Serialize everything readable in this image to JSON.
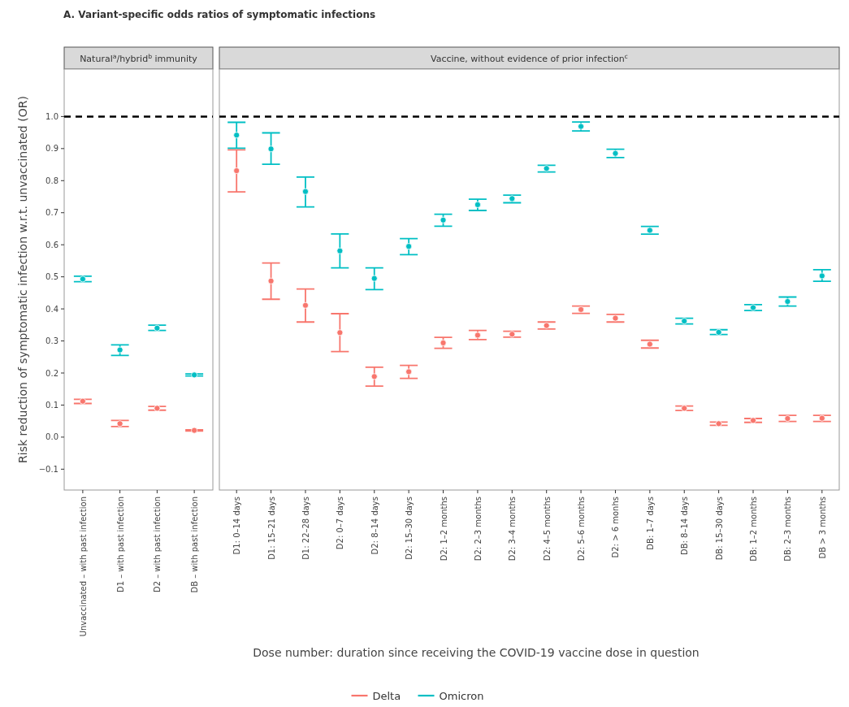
{
  "chart_data": [
    {
      "type": "scatter",
      "title": "Natural$^{a}$/hybrid$^{b}$ immunity",
      "ylabel": "Risk reduction of symptomatic infection w.r.t. unvaccinated (OR)",
      "annotations": [
        "A. Variant-specific odds ratios of symptomatic infections"
      ],
      "categories": [
        "Unvaccinated – with past infection",
        "D1 – with past infection",
        "D2 – with past infection",
        "DB – with past infection"
      ],
      "ylim": [
        -0.165,
        1.148
      ],
      "yticks": [
        {
          "value": -0.1,
          "label": "−0.1"
        },
        {
          "value": 0,
          "label": "0.0"
        },
        0.1,
        0.2,
        0.3,
        0.4,
        0.5,
        0.6,
        0.7,
        0.8,
        0.9,
        {
          "value": 1,
          "label": "1.0"
        }
      ],
      "grid": false,
      "marker": "circle",
      "ref_lines": [
        {
          "axis": "y",
          "value": 1,
          "color": "#000000",
          "line_style": "dashed"
        }
      ],
      "series": [
        {
          "color": "#f8766d",
          "values": [
            0.112,
            0.042,
            0.09,
            0.021
          ],
          "errors": [
            [
              0.105,
              0.118
            ],
            [
              0.033,
              0.052
            ],
            [
              0.084,
              0.096
            ],
            [
              0.019,
              0.023
            ]
          ]
        },
        {
          "color": "#00bfc4",
          "values": [
            0.493,
            0.272,
            0.34,
            0.194
          ],
          "errors": [
            [
              0.485,
              0.502
            ],
            [
              0.255,
              0.288
            ],
            [
              0.333,
              0.349
            ],
            [
              0.191,
              0.197
            ]
          ]
        }
      ]
    },
    {
      "type": "scatter",
      "title": "Vaccine, without evidence of prior infection$^{c}$",
      "xlabel": "Dose number: duration since receiving the COVID-19 vaccine dose in question",
      "categories": [
        "D1: 0–14 days",
        "D1: 15–21 days",
        "D1: 22–28 days",
        "D2: 0–7 days",
        "D2: 8–14 days",
        "D2: 15–30 days",
        "D2: 1–2 months",
        "D2: 2–3 months",
        "D2: 3–4 months",
        "D2: 4–5 months",
        "D2: 5–6 months",
        "D2: > 6 monhs",
        "DB: 1–7 days",
        "DB: 8–14 days",
        "DB: 15–30 days",
        "DB: 1–2 months",
        "DB: 2–3 months",
        "DB > 3 months"
      ],
      "ylim": [
        -0.165,
        1.148
      ],
      "tick_labels": "x",
      "grid": false,
      "marker": "circle",
      "legend": "bottom",
      "ref_lines": [
        {
          "axis": "y",
          "value": 1,
          "color": "#000000",
          "line_style": "dashed"
        }
      ],
      "series": [
        {
          "name": "Delta",
          "color": "#f8766d",
          "values": [
            0.831,
            0.487,
            0.411,
            0.326,
            0.189,
            0.204,
            0.294,
            0.318,
            0.321,
            0.348,
            0.398,
            0.371,
            0.29,
            0.09,
            0.042,
            0.052,
            0.058,
            0.059
          ],
          "errors": [
            [
              0.765,
              0.896
            ],
            [
              0.43,
              0.543
            ],
            [
              0.359,
              0.462
            ],
            [
              0.267,
              0.385
            ],
            [
              0.159,
              0.218
            ],
            [
              0.183,
              0.224
            ],
            [
              0.277,
              0.311
            ],
            [
              0.304,
              0.333
            ],
            [
              0.312,
              0.33
            ],
            [
              0.337,
              0.359
            ],
            [
              0.386,
              0.409
            ],
            [
              0.359,
              0.383
            ],
            [
              0.278,
              0.302
            ],
            [
              0.083,
              0.097
            ],
            [
              0.037,
              0.047
            ],
            [
              0.046,
              0.058
            ],
            [
              0.049,
              0.068
            ],
            [
              0.049,
              0.068
            ]
          ]
        },
        {
          "name": "Omicron",
          "color": "#00bfc4",
          "values": [
            0.942,
            0.899,
            0.766,
            0.581,
            0.495,
            0.595,
            0.677,
            0.725,
            0.744,
            0.838,
            0.969,
            0.885,
            0.645,
            0.362,
            0.327,
            0.404,
            0.423,
            0.503
          ],
          "errors": [
            [
              0.901,
              0.982
            ],
            [
              0.851,
              0.949
            ],
            [
              0.718,
              0.811
            ],
            [
              0.528,
              0.634
            ],
            [
              0.46,
              0.528
            ],
            [
              0.569,
              0.619
            ],
            [
              0.658,
              0.695
            ],
            [
              0.707,
              0.742
            ],
            [
              0.731,
              0.755
            ],
            [
              0.827,
              0.848
            ],
            [
              0.955,
              0.983
            ],
            [
              0.872,
              0.898
            ],
            [
              0.633,
              0.657
            ],
            [
              0.353,
              0.371
            ],
            [
              0.32,
              0.335
            ],
            [
              0.395,
              0.413
            ],
            [
              0.409,
              0.437
            ],
            [
              0.486,
              0.522
            ]
          ]
        }
      ]
    }
  ]
}
